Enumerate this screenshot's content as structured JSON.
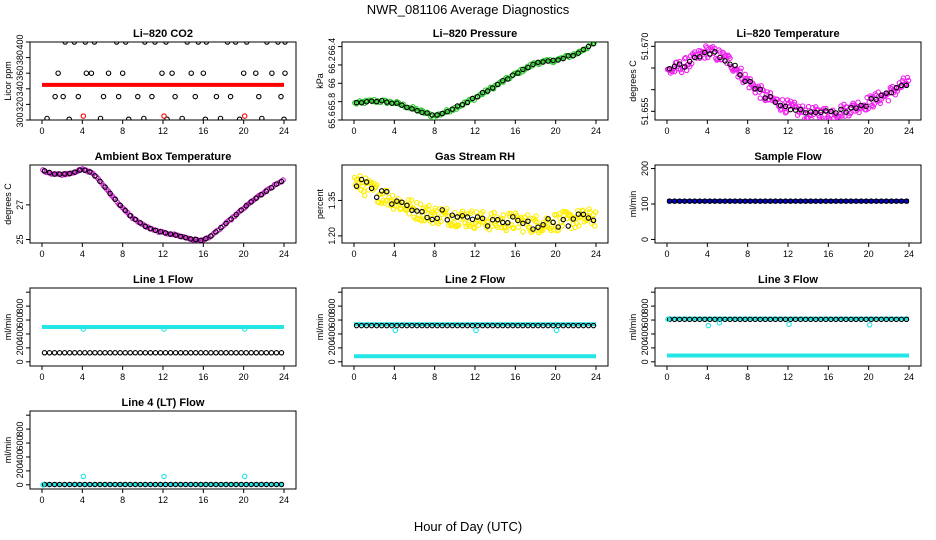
{
  "figure": {
    "title": "NWR_081106  Average Diagnostics",
    "xlabel": "Hour of Day (UTC)"
  },
  "chart_data": [
    {
      "id": "co2",
      "type": "scatter",
      "title": "Li–820 CO2",
      "xlabel": "",
      "ylabel": "Licor ppm",
      "xlim": [
        0,
        24
      ],
      "xticks": [
        0,
        4,
        8,
        12,
        16,
        20,
        24
      ],
      "ylim": [
        300,
        400
      ],
      "yticks": [
        300,
        320,
        340,
        360,
        380,
        400
      ],
      "series": [
        {
          "name": "average",
          "color": "#ff0000",
          "marker": "dense-line",
          "x_start": 0,
          "x_end": 24,
          "y": 345
        },
        {
          "name": "pts_400",
          "color": "#000000",
          "marker": "circle",
          "x": [
            2.3,
            3.2,
            4.3,
            5.2,
            7.4,
            8.3,
            10.2,
            11.2,
            12.3,
            14.4,
            15.5,
            16.3,
            18.4,
            19.2,
            20.3,
            22.3,
            23.4,
            24.1
          ],
          "y": [
            400,
            400,
            400,
            400,
            400,
            400,
            400,
            400,
            400,
            400,
            400,
            400,
            400,
            400,
            400,
            400,
            400,
            400
          ]
        },
        {
          "name": "pts_360",
          "color": "#000000",
          "marker": "circle",
          "x": [
            1.6,
            4.4,
            4.9,
            6.6,
            8.0,
            11.9,
            12.9,
            14.8,
            16.0,
            20.0,
            21.2,
            22.8,
            24.1
          ],
          "y": [
            360,
            360,
            360,
            360,
            360,
            360,
            360,
            360,
            360,
            360,
            360,
            360,
            360
          ]
        },
        {
          "name": "pts_330",
          "color": "#000000",
          "marker": "circle",
          "x": [
            1.3,
            2.1,
            3.6,
            6.1,
            7.6,
            9.5,
            10.9,
            13.2,
            15.2,
            17.3,
            18.7,
            21.5,
            23.7
          ],
          "y": [
            330,
            330,
            330,
            330,
            330,
            330,
            330,
            330,
            330,
            330,
            330,
            330,
            330
          ]
        },
        {
          "name": "pts_300",
          "color": "#000000",
          "marker": "circle",
          "x": [
            0.5,
            2.7,
            5.8,
            8.6,
            10.1,
            12.4,
            13.9,
            16.2,
            17.7,
            19.6,
            21.8,
            24.0
          ],
          "y": [
            302,
            301,
            302,
            301,
            302,
            301,
            302,
            301,
            302,
            301,
            302,
            301
          ]
        },
        {
          "name": "pts_red",
          "color": "#ff0000",
          "marker": "circle",
          "x": [
            4.1,
            12.1,
            20.1
          ],
          "y": [
            305,
            305,
            305
          ]
        }
      ]
    },
    {
      "id": "pressure",
      "type": "scatter",
      "title": "Li–820 Pressure",
      "xlabel": "",
      "ylabel": "kPa",
      "xlim": [
        0,
        24
      ],
      "xticks": [
        0,
        4,
        8,
        12,
        16,
        20,
        24
      ],
      "ylim": [
        65.6,
        66.45
      ],
      "yticks": [
        65.6,
        65.8,
        66.0,
        66.2,
        66.4
      ],
      "curve": {
        "x": [
          0,
          2,
          4,
          6,
          8,
          10,
          12,
          14,
          16,
          18,
          20,
          22,
          24
        ],
        "y": [
          65.78,
          65.81,
          65.79,
          65.72,
          65.64,
          65.73,
          65.84,
          65.97,
          66.1,
          66.22,
          66.25,
          66.32,
          66.45
        ]
      },
      "series": [
        {
          "name": "raw",
          "color": "#33cc33",
          "marker": "circle",
          "noise": 0.02,
          "count": 150
        },
        {
          "name": "hourly",
          "color": "#000000",
          "marker": "circle",
          "noise": 0.01,
          "count": 48
        }
      ]
    },
    {
      "id": "licor-temp",
      "type": "scatter",
      "title": "Li–820 Temperature",
      "xlabel": "",
      "ylabel": "degrees C",
      "xlim": [
        0,
        24
      ],
      "xticks": [
        0,
        4,
        8,
        12,
        16,
        20,
        24
      ],
      "ylim": [
        51.653,
        51.671
      ],
      "yticks": [
        51.655,
        51.66,
        51.665,
        51.67
      ],
      "ytick_labels": [
        "51.655",
        "",
        "",
        "51.670"
      ],
      "curve": {
        "x": [
          0,
          2,
          4,
          6,
          8,
          10,
          12,
          14,
          16,
          18,
          20,
          22,
          24
        ],
        "y": [
          51.664,
          51.666,
          51.669,
          51.667,
          51.662,
          51.658,
          51.656,
          51.6545,
          51.6545,
          51.6555,
          51.657,
          51.659,
          51.662
        ]
      },
      "series": [
        {
          "name": "raw",
          "color": "#ee22ee",
          "marker": "circle",
          "noise": 0.0016,
          "count": 240
        },
        {
          "name": "hourly",
          "color": "#000000",
          "marker": "circle",
          "noise": 0.0007,
          "count": 48
        }
      ]
    },
    {
      "id": "box-temp",
      "type": "scatter",
      "title": "Ambient Box Temperature",
      "xlabel": "",
      "ylabel": "degrees C",
      "xlim": [
        0,
        24
      ],
      "xticks": [
        0,
        4,
        8,
        12,
        16,
        20,
        24
      ],
      "ylim": [
        24.8,
        29.3
      ],
      "yticks": [
        25,
        27
      ],
      "curve": {
        "x": [
          0,
          1,
          2,
          3,
          4,
          5,
          6,
          7,
          8,
          9,
          10,
          11,
          12,
          13,
          14,
          15,
          16,
          17,
          18,
          19,
          20,
          21,
          22,
          23,
          24
        ],
        "y": [
          29.0,
          28.8,
          28.75,
          28.85,
          29.05,
          28.85,
          28.2,
          27.5,
          26.8,
          26.25,
          25.85,
          25.55,
          25.4,
          25.3,
          25.15,
          25.0,
          24.95,
          25.3,
          25.8,
          26.3,
          26.8,
          27.3,
          27.7,
          28.1,
          28.45
        ]
      },
      "series": [
        {
          "name": "raw",
          "color": "#cc22cc",
          "marker": "circle",
          "noise": 0.04,
          "count": 140
        },
        {
          "name": "hourly",
          "color": "#000000",
          "marker": "circle",
          "noise": 0.02,
          "count": 48
        }
      ]
    },
    {
      "id": "rh",
      "type": "scatter",
      "title": "Gas Stream RH",
      "xlabel": "",
      "ylabel": "percent",
      "xlim": [
        0,
        24
      ],
      "xticks": [
        0,
        4,
        8,
        12,
        16,
        20,
        24
      ],
      "ylim": [
        1.17,
        1.5
      ],
      "yticks": [
        1.2,
        1.35
      ],
      "extra_tick_labels": [
        "1.20",
        "1.35"
      ],
      "curve": {
        "x": [
          0,
          2,
          4,
          6,
          8,
          10,
          12,
          14,
          16,
          18,
          20,
          22,
          24
        ],
        "y": [
          1.43,
          1.39,
          1.35,
          1.31,
          1.29,
          1.28,
          1.27,
          1.26,
          1.26,
          1.25,
          1.26,
          1.27,
          1.28
        ]
      },
      "series": [
        {
          "name": "raw",
          "color": "#ffee00",
          "marker": "circle",
          "noise": 0.04,
          "count": 260
        },
        {
          "name": "hourly",
          "color": "#000000",
          "marker": "circle",
          "noise": 0.025,
          "count": 48
        }
      ]
    },
    {
      "id": "sample-flow",
      "type": "scatter",
      "title": "Sample Flow",
      "xlabel": "",
      "ylabel": "ml/min",
      "xlim": [
        0,
        24
      ],
      "xticks": [
        0,
        4,
        8,
        12,
        16,
        20,
        24
      ],
      "ylim": [
        -10,
        210
      ],
      "yticks": [
        0,
        100,
        200
      ],
      "series": [
        {
          "name": "raw",
          "color": "#0000cc",
          "marker": "dense-line",
          "x_start": 0,
          "x_end": 24,
          "y": 108
        },
        {
          "name": "hourly",
          "color": "#000000",
          "marker": "circle",
          "level": 108,
          "count": 48
        }
      ]
    },
    {
      "id": "line1",
      "type": "scatter",
      "title": "Line 1 Flow",
      "xlabel": "",
      "ylabel": "ml/min",
      "xlim": [
        0,
        24
      ],
      "xticks": [
        0,
        4,
        8,
        12,
        16,
        20,
        24
      ],
      "ylim": [
        -60,
        1060
      ],
      "yticks": [
        0,
        200,
        400,
        600,
        800,
        1000
      ],
      "ytick_labels": [
        "0",
        "200",
        "400",
        "600",
        "800",
        ""
      ],
      "series": [
        {
          "name": "raw",
          "color": "#22e6e6",
          "marker": "dense-line",
          "x_start": 0,
          "x_end": 24,
          "y": 500
        },
        {
          "name": "hourly",
          "color": "#000000",
          "marker": "circle",
          "level": 130,
          "count": 48
        },
        {
          "name": "spikes",
          "color": "#22e6e6",
          "marker": "circle",
          "x": [
            4.1,
            12.1,
            20.1
          ],
          "y": [
            470,
            470,
            470
          ]
        }
      ]
    },
    {
      "id": "line2",
      "type": "scatter",
      "title": "Line 2 Flow",
      "xlabel": "",
      "ylabel": "ml/min",
      "xlim": [
        0,
        24
      ],
      "xticks": [
        0,
        4,
        8,
        12,
        16,
        20,
        24
      ],
      "ylim": [
        -60,
        1060
      ],
      "yticks": [
        0,
        200,
        400,
        600,
        800,
        1000
      ],
      "ytick_labels": [
        "0",
        "200",
        "400",
        "600",
        "800",
        ""
      ],
      "series": [
        {
          "name": "raw",
          "color": "#22e6e6",
          "marker": "dense-line",
          "x_start": 0,
          "x_end": 24,
          "y": 80
        },
        {
          "name": "raw_top",
          "color": "#22e6e6",
          "marker": "dense-line",
          "x_start": 0,
          "x_end": 24,
          "y": 540
        },
        {
          "name": "hourly",
          "color": "#000000",
          "marker": "circle",
          "level": 520,
          "count": 48
        },
        {
          "name": "spikes",
          "color": "#22e6e6",
          "marker": "circle",
          "x": [
            4.1,
            12.1,
            20.1
          ],
          "y": [
            450,
            450,
            450
          ]
        }
      ]
    },
    {
      "id": "line3",
      "type": "scatter",
      "title": "Line 3 Flow",
      "xlabel": "",
      "ylabel": "ml/min",
      "xlim": [
        0,
        24
      ],
      "xticks": [
        0,
        4,
        8,
        12,
        16,
        20,
        24
      ],
      "ylim": [
        -60,
        1060
      ],
      "yticks": [
        0,
        200,
        400,
        600,
        800,
        1000
      ],
      "ytick_labels": [
        "0",
        "200",
        "400",
        "600",
        "800",
        ""
      ],
      "series": [
        {
          "name": "raw",
          "color": "#22e6e6",
          "marker": "dense-line",
          "x_start": 0,
          "x_end": 24,
          "y": 90
        },
        {
          "name": "raw_top",
          "color": "#22e6e6",
          "marker": "dense-line",
          "x_start": 0,
          "x_end": 24,
          "y": 620
        },
        {
          "name": "hourly",
          "color": "#000000",
          "marker": "circle",
          "level": 610,
          "count": 48
        },
        {
          "name": "spikes",
          "color": "#22e6e6",
          "marker": "circle",
          "x": [
            0.1,
            4.1,
            5.2,
            12.1,
            20.1
          ],
          "y": [
            610,
            520,
            560,
            540,
            530
          ]
        }
      ]
    },
    {
      "id": "line4",
      "type": "scatter",
      "title": "Line 4 (LT) Flow",
      "xlabel": "",
      "ylabel": "ml/min",
      "xlim": [
        0,
        24
      ],
      "xticks": [
        0,
        4,
        8,
        12,
        16,
        20,
        24
      ],
      "ylim": [
        -60,
        1060
      ],
      "yticks": [
        0,
        200,
        400,
        600,
        800,
        1000
      ],
      "ytick_labels": [
        "0",
        "200",
        "400",
        "600",
        "800",
        ""
      ],
      "series": [
        {
          "name": "raw",
          "color": "#22e6e6",
          "marker": "dense-line",
          "x_start": 0,
          "x_end": 24,
          "y": 5
        },
        {
          "name": "hourly",
          "color": "#000000",
          "marker": "circle",
          "level": 5,
          "count": 48
        },
        {
          "name": "spikes",
          "color": "#22e6e6",
          "marker": "circle",
          "x": [
            0.1,
            4.1,
            12.1,
            20.1
          ],
          "y": [
            0,
            120,
            120,
            120
          ]
        }
      ]
    }
  ]
}
